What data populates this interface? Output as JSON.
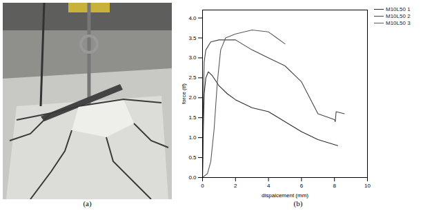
{
  "panel_labels": [
    "(a)",
    "(b)"
  ],
  "chart_data": {
    "type": "line",
    "x_label": "dispalcement (mm)",
    "y_label": "force (tf)",
    "xlim": [
      0,
      10
    ],
    "xticks": [
      0,
      2,
      4,
      6,
      8,
      10
    ],
    "ylim": [
      0,
      4.2
    ],
    "yticks": [
      {
        "value": 0,
        "label": "0.0"
      },
      {
        "value": 0.5,
        "label": "0.5"
      },
      {
        "value": 1,
        "label": "1.0"
      },
      {
        "value": 1.5,
        "label": "1.5"
      },
      {
        "value": 2,
        "label": "2.0"
      },
      {
        "value": 2.5,
        "label": "2.5"
      },
      {
        "value": 3,
        "label": "3.0"
      },
      {
        "value": 3.5,
        "label": "3.5"
      },
      {
        "value": 4,
        "label": "4.0"
      }
    ],
    "legend": "right",
    "series": [
      {
        "name": "M10L50 1",
        "color": "#2b2b2b",
        "x": [
          0,
          0.05,
          0.1,
          0.2,
          0.35,
          0.6,
          1,
          1.5,
          2,
          3,
          4,
          5,
          6,
          7,
          8.2
        ],
        "values": [
          0,
          1.2,
          2.1,
          2.5,
          2.65,
          2.55,
          2.3,
          2.1,
          1.95,
          1.75,
          1.65,
          1.4,
          1.15,
          0.95,
          0.8
        ]
      },
      {
        "name": "M10L50 2",
        "color": "#444444",
        "x": [
          0,
          0.05,
          0.1,
          0.2,
          0.5,
          1,
          2,
          3,
          4,
          5,
          6,
          7,
          8,
          8.05,
          8.1,
          8.6
        ],
        "values": [
          0,
          2,
          2.9,
          3.2,
          3.4,
          3.45,
          3.45,
          3.2,
          3.0,
          2.8,
          2.4,
          1.6,
          1.45,
          1.4,
          1.65,
          1.6
        ]
      },
      {
        "name": "M10L50 3",
        "color": "#5a5a5a",
        "x": [
          0,
          0.3,
          0.5,
          0.7,
          0.9,
          1.1,
          1.4,
          2,
          3,
          4,
          4.5,
          5
        ],
        "values": [
          0,
          0.1,
          0.4,
          1.2,
          2.4,
          3.2,
          3.5,
          3.6,
          3.7,
          3.65,
          3.5,
          3.35
        ]
      }
    ]
  }
}
